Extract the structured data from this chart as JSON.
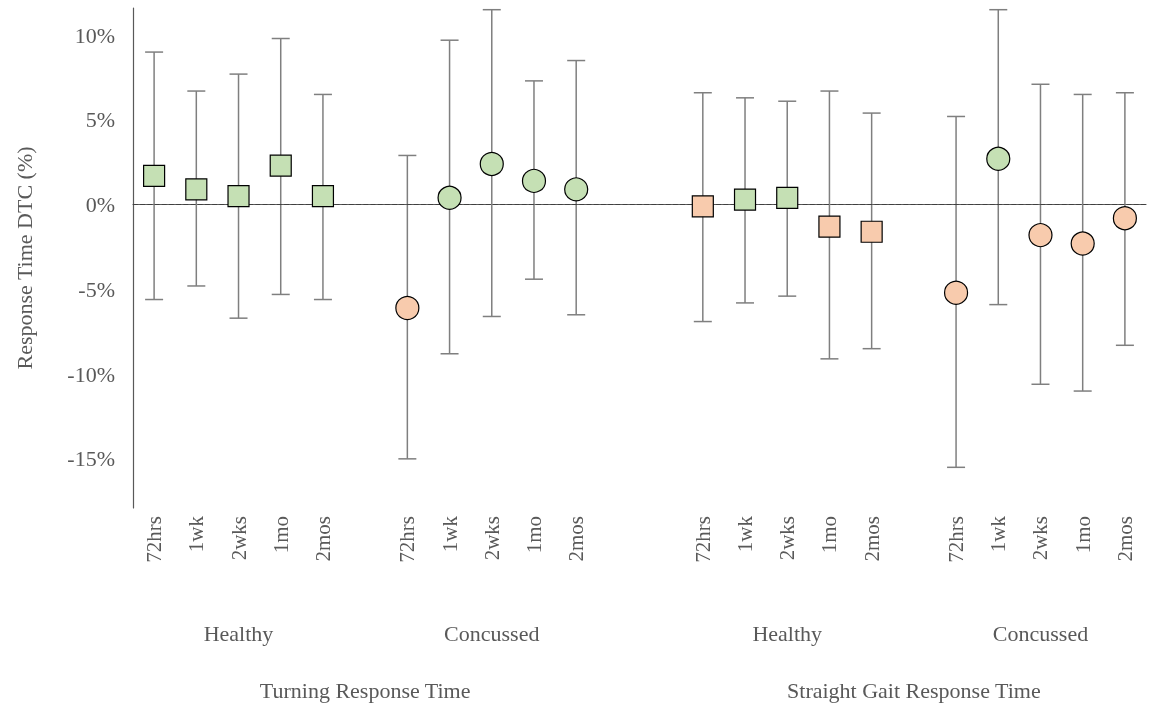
{
  "chart_data": {
    "type": "scatter",
    "ylabel": "Response Time DTC (%)",
    "categories": [
      "72hrs",
      "1wk",
      "2wks",
      "1mo",
      "2mos",
      null,
      "72hrs",
      "1wk",
      "2wks",
      "1mo",
      "2mos",
      null,
      null,
      "72hrs",
      "1wk",
      "2wks",
      "1mo",
      "2mos",
      null,
      "72hrs",
      "1wk",
      "2wks",
      "1mo",
      "2mos"
    ],
    "series": [
      {
        "marker": "square",
        "colors": [
          "#c5e0b4",
          "#c5e0b4",
          "#c5e0b4",
          "#c5e0b4",
          "#c5e0b4",
          null,
          null,
          null,
          null,
          null,
          null,
          null,
          null,
          null,
          null,
          null,
          null,
          null,
          null,
          null,
          null,
          null,
          null,
          null
        ],
        "values": [
          1.7,
          0.9,
          0.5,
          2.3,
          0.5,
          null,
          null,
          null,
          null,
          null,
          null,
          null,
          null,
          null,
          null,
          null,
          null,
          null,
          null,
          null,
          null,
          null,
          null,
          null
        ],
        "errors": [
          [
            -5.6,
            9.0
          ],
          [
            -4.8,
            6.7
          ],
          [
            -6.7,
            7.7
          ],
          [
            -5.3,
            9.8
          ],
          [
            -5.6,
            6.5
          ],
          null,
          null,
          null,
          null,
          null,
          null,
          null,
          null,
          null,
          null,
          null,
          null,
          null,
          null,
          null,
          null,
          null,
          null,
          null
        ]
      },
      {
        "marker": "circle",
        "colors": [
          null,
          null,
          null,
          null,
          null,
          null,
          "#f8cbad",
          "#c5e0b4",
          "#c5e0b4",
          "#c5e0b4",
          "#c5e0b4",
          null,
          null,
          null,
          null,
          null,
          null,
          null,
          null,
          null,
          null,
          null,
          null,
          null
        ],
        "values": [
          null,
          null,
          null,
          null,
          null,
          null,
          -6.1,
          0.4,
          2.4,
          1.4,
          0.9,
          null,
          null,
          null,
          null,
          null,
          null,
          null,
          null,
          null,
          null,
          null,
          null,
          null
        ],
        "errors": [
          null,
          null,
          null,
          null,
          null,
          null,
          [
            -15.0,
            2.9
          ],
          [
            -8.8,
            9.7
          ],
          [
            -6.6,
            11.5
          ],
          [
            -4.4,
            7.3
          ],
          [
            -6.5,
            8.5
          ],
          null,
          null,
          null,
          null,
          null,
          null,
          null,
          null,
          null,
          null,
          null,
          null,
          null
        ]
      },
      {
        "marker": "square",
        "colors": [
          null,
          null,
          null,
          null,
          null,
          null,
          null,
          null,
          null,
          null,
          null,
          null,
          null,
          "#f8cbad",
          "#c5e0b4",
          "#c5e0b4",
          "#f8cbad",
          "#f8cbad",
          null,
          null,
          null,
          null,
          null,
          null
        ],
        "values": [
          null,
          null,
          null,
          null,
          null,
          null,
          null,
          null,
          null,
          null,
          null,
          null,
          null,
          -0.1,
          0.3,
          0.4,
          -1.3,
          -1.6,
          null,
          null,
          null,
          null,
          null,
          null
        ],
        "errors": [
          null,
          null,
          null,
          null,
          null,
          null,
          null,
          null,
          null,
          null,
          null,
          null,
          null,
          [
            -6.9,
            6.6
          ],
          [
            -5.8,
            6.3
          ],
          [
            -5.4,
            6.1
          ],
          [
            -9.1,
            6.7
          ],
          [
            -8.5,
            5.4
          ],
          null,
          null,
          null,
          null,
          null,
          null
        ]
      },
      {
        "marker": "circle",
        "colors": [
          null,
          null,
          null,
          null,
          null,
          null,
          null,
          null,
          null,
          null,
          null,
          null,
          null,
          null,
          null,
          null,
          null,
          null,
          null,
          "#f8cbad",
          "#c5e0b4",
          "#f8cbad",
          "#f8cbad",
          "#f8cbad"
        ],
        "values": [
          null,
          null,
          null,
          null,
          null,
          null,
          null,
          null,
          null,
          null,
          null,
          null,
          null,
          null,
          null,
          null,
          null,
          null,
          null,
          -5.2,
          2.7,
          -1.8,
          -2.3,
          -0.8
        ],
        "errors": [
          null,
          null,
          null,
          null,
          null,
          null,
          null,
          null,
          null,
          null,
          null,
          null,
          null,
          null,
          null,
          null,
          null,
          null,
          null,
          [
            -15.5,
            5.2
          ],
          [
            -5.9,
            11.5
          ],
          [
            -10.6,
            7.1
          ],
          [
            -11.0,
            6.5
          ],
          [
            -8.3,
            6.6
          ]
        ]
      }
    ],
    "ylim": [
      -17.9,
      11.6
    ],
    "yticks": [
      {
        "value": -15,
        "label": "-15%"
      },
      {
        "value": -10,
        "label": "-10%"
      },
      {
        "value": -5,
        "label": "-5%"
      },
      {
        "value": 0,
        "label": "0%"
      },
      {
        "value": 5,
        "label": "5%"
      },
      {
        "value": 10,
        "label": "10%"
      }
    ],
    "ref_lines": [
      {
        "axis": "y",
        "value": 0,
        "color": "#404040",
        "line_style": "dashed"
      }
    ],
    "grid": false,
    "annotations": [
      "Healthy",
      "Concussed",
      "Healthy",
      "Concussed",
      "Turning Response Time",
      "Straight Gait Response Time"
    ]
  }
}
